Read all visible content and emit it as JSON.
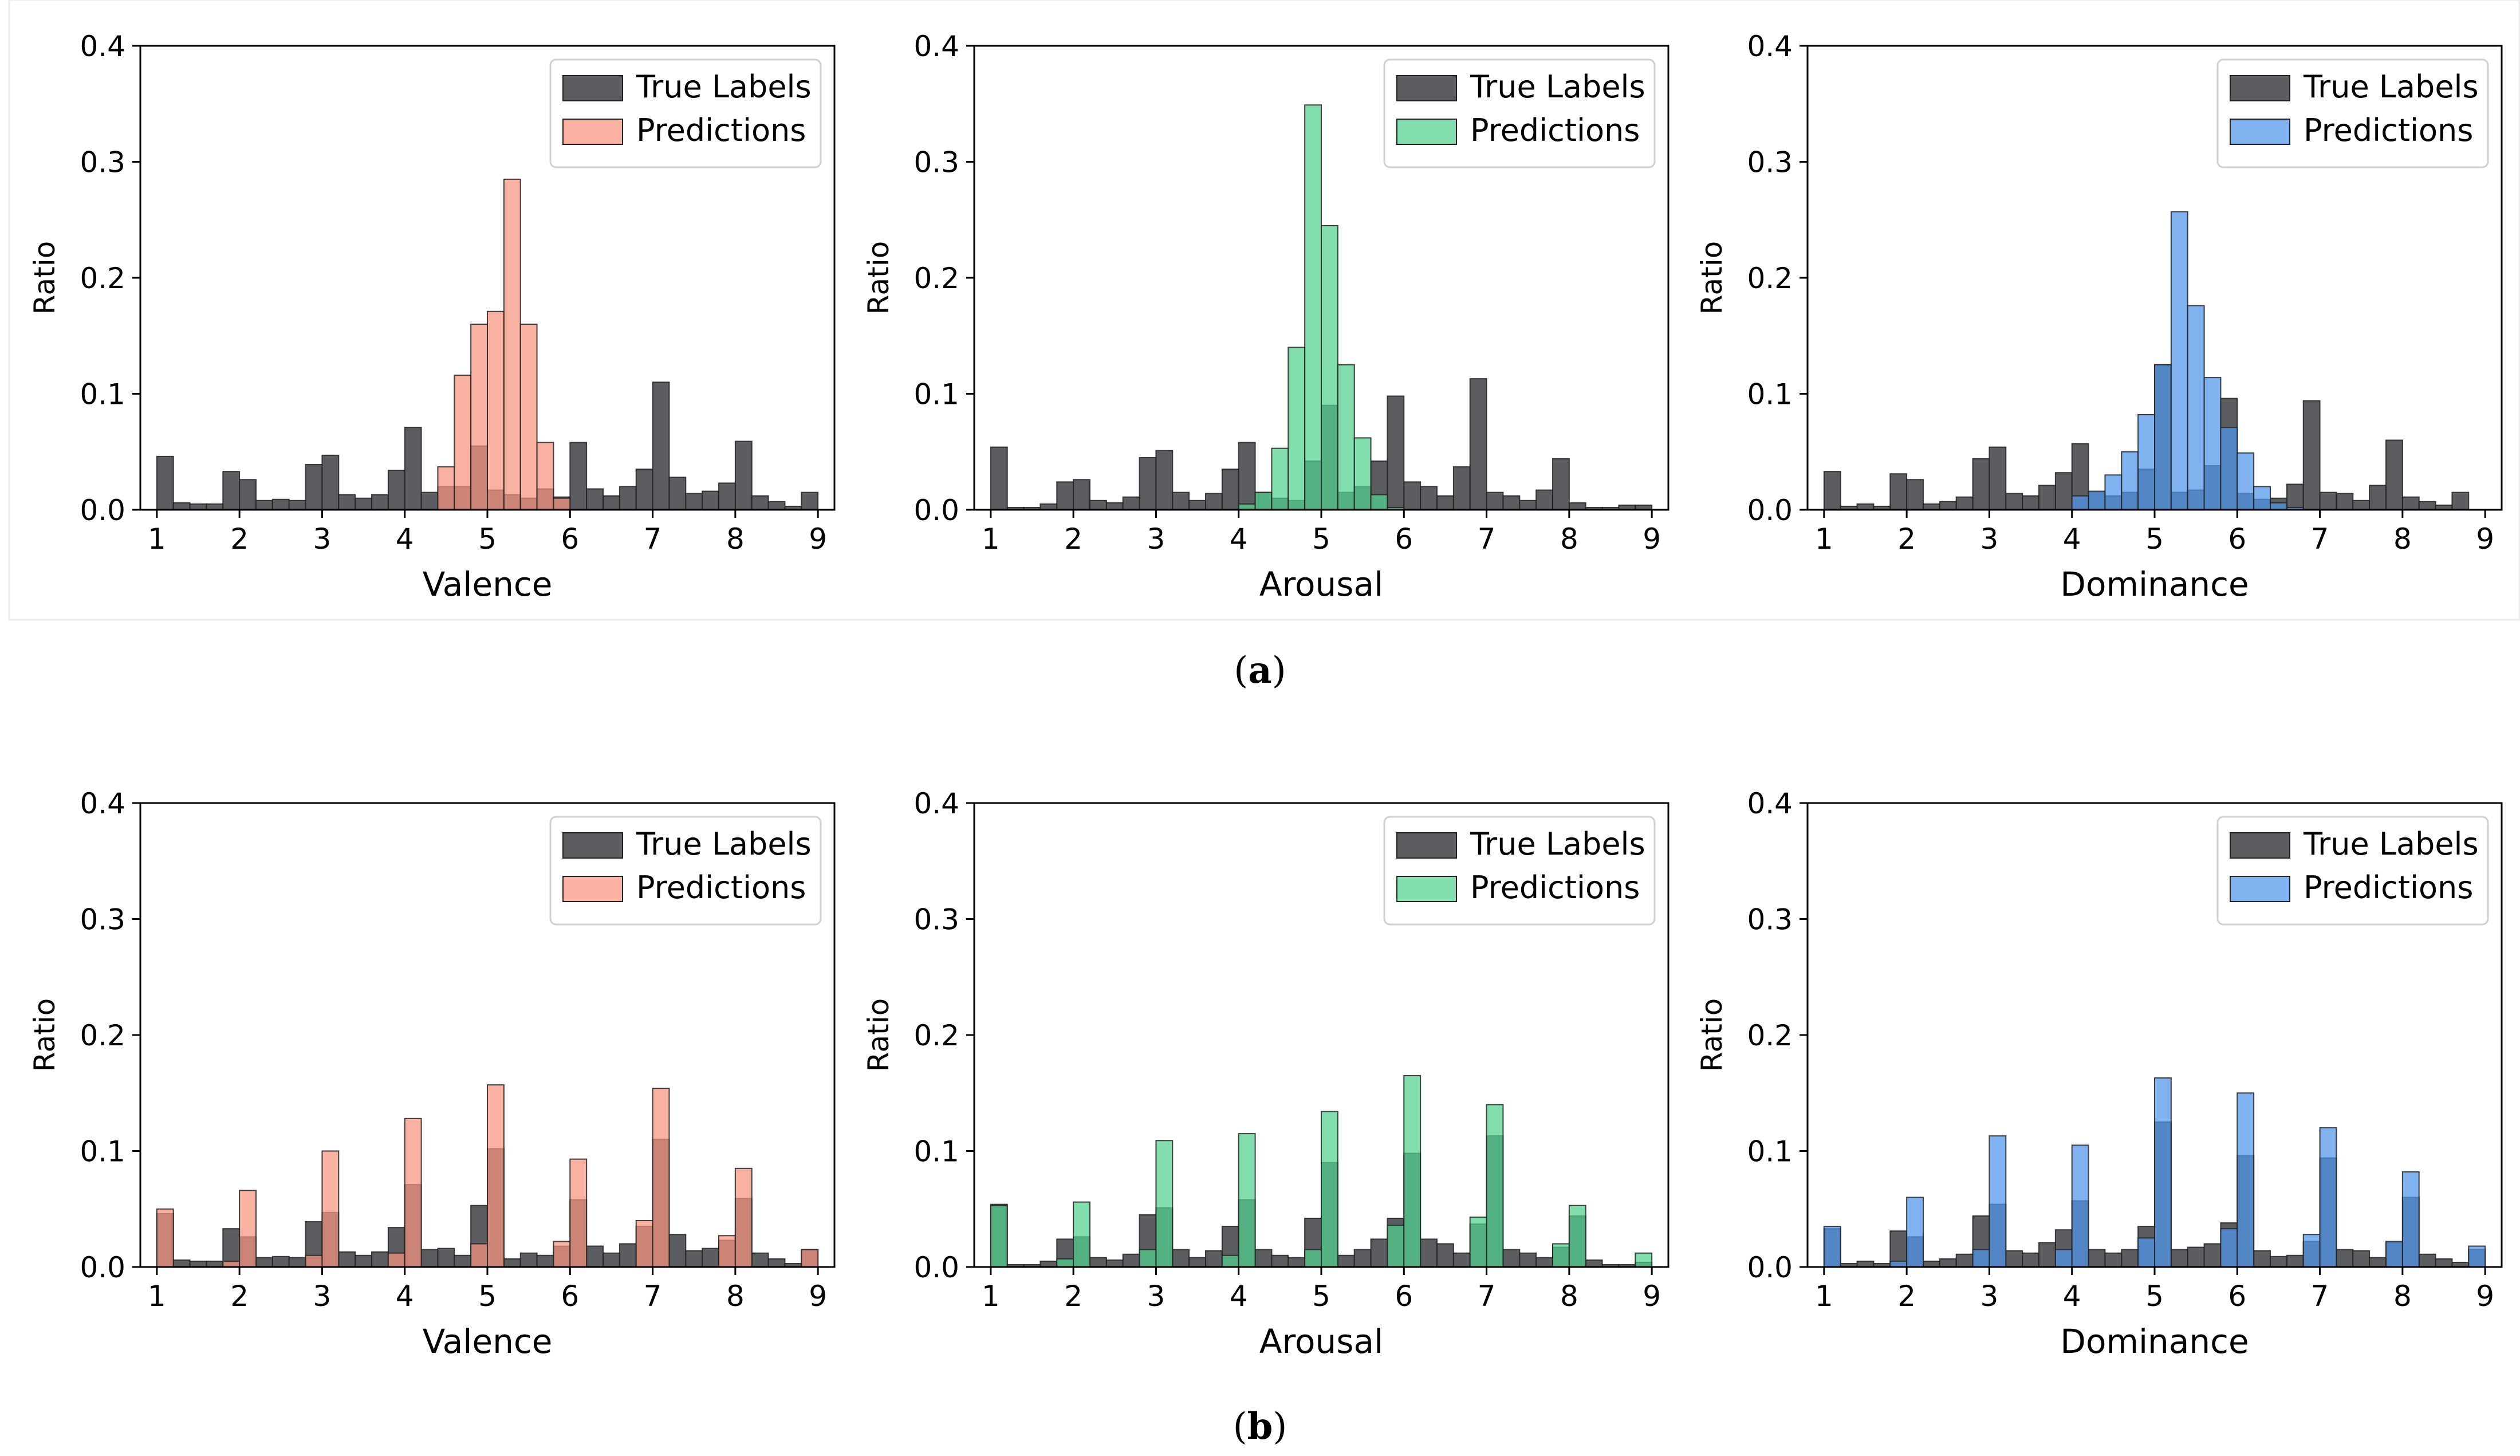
{
  "colors": {
    "true_labels": "#4d4f53",
    "valence": "#f6937d",
    "arousal": "#52d18d",
    "dominance": "#4f96ea",
    "edge": "#222222"
  },
  "captions": {
    "a": "a",
    "b": "b"
  },
  "chart_data": [
    {
      "id": "a-valence",
      "row": "a",
      "type": "bar",
      "title": "",
      "xlabel": "Valence",
      "ylabel": "Ratio",
      "xlim": [
        0.8,
        9.2
      ],
      "ylim": [
        0,
        0.4
      ],
      "xticks": [
        1,
        2,
        3,
        4,
        5,
        6,
        7,
        8,
        9
      ],
      "yticks": [
        "0.0",
        "0.1",
        "0.2",
        "0.3",
        "0.4"
      ],
      "bin_start": 1,
      "bin_width": 0.2,
      "color_key": "valence",
      "legend": "top-right",
      "series": [
        {
          "name": "True Labels",
          "values": [
            0.046,
            0.006,
            0.005,
            0.005,
            0.033,
            0.026,
            0.008,
            0.009,
            0.008,
            0.039,
            0.047,
            0.013,
            0.01,
            0.013,
            0.034,
            0.071,
            0.015,
            0.02,
            0.02,
            0.055,
            0.017,
            0.013,
            0.01,
            0.018,
            0.011,
            0.058,
            0.018,
            0.012,
            0.02,
            0.035,
            0.11,
            0.028,
            0.014,
            0.016,
            0.023,
            0.059,
            0.012,
            0.007,
            0.003,
            0.015
          ]
        },
        {
          "name": "Predictions",
          "values": [
            0,
            0,
            0,
            0,
            0,
            0,
            0,
            0,
            0,
            0,
            0,
            0,
            0,
            0,
            0,
            0,
            0,
            0.037,
            0.116,
            0.16,
            0.171,
            0.285,
            0.16,
            0.058,
            0.01,
            0,
            0,
            0,
            0,
            0,
            0,
            0,
            0,
            0,
            0,
            0,
            0,
            0,
            0,
            0
          ]
        }
      ]
    },
    {
      "id": "a-arousal",
      "row": "a",
      "type": "bar",
      "title": "",
      "xlabel": "Arousal",
      "ylabel": "Ratio",
      "xlim": [
        0.8,
        9.2
      ],
      "ylim": [
        0,
        0.4
      ],
      "xticks": [
        1,
        2,
        3,
        4,
        5,
        6,
        7,
        8,
        9
      ],
      "yticks": [
        "0.0",
        "0.1",
        "0.2",
        "0.3",
        "0.4"
      ],
      "bin_start": 1,
      "bin_width": 0.2,
      "color_key": "arousal",
      "legend": "top-right",
      "series": [
        {
          "name": "True Labels",
          "values": [
            0.054,
            0.002,
            0.002,
            0.005,
            0.024,
            0.026,
            0.008,
            0.006,
            0.011,
            0.045,
            0.051,
            0.015,
            0.008,
            0.014,
            0.035,
            0.058,
            0.015,
            0.01,
            0.008,
            0.042,
            0.09,
            0.015,
            0.02,
            0.042,
            0.098,
            0.024,
            0.02,
            0.012,
            0.037,
            0.113,
            0.015,
            0.012,
            0.008,
            0.017,
            0.044,
            0.006,
            0.002,
            0.002,
            0.004,
            0.004
          ]
        },
        {
          "name": "Predictions",
          "values": [
            0,
            0,
            0,
            0,
            0,
            0,
            0,
            0,
            0,
            0,
            0,
            0,
            0,
            0,
            0,
            0.005,
            0.015,
            0.053,
            0.14,
            0.349,
            0.245,
            0.125,
            0.062,
            0.013,
            0.002,
            0,
            0,
            0,
            0,
            0,
            0,
            0,
            0,
            0,
            0,
            0,
            0,
            0,
            0,
            0
          ]
        }
      ]
    },
    {
      "id": "a-dominance",
      "row": "a",
      "type": "bar",
      "title": "",
      "xlabel": "Dominance",
      "ylabel": "Ratio",
      "xlim": [
        0.8,
        9.2
      ],
      "ylim": [
        0,
        0.4
      ],
      "xticks": [
        1,
        2,
        3,
        4,
        5,
        6,
        7,
        8,
        9
      ],
      "yticks": [
        "0.0",
        "0.1",
        "0.2",
        "0.3",
        "0.4"
      ],
      "bin_start": 1,
      "bin_width": 0.2,
      "color_key": "dominance",
      "legend": "top-right",
      "series": [
        {
          "name": "True Labels",
          "values": [
            0.033,
            0.003,
            0.005,
            0.003,
            0.031,
            0.026,
            0.005,
            0.007,
            0.011,
            0.044,
            0.054,
            0.014,
            0.012,
            0.021,
            0.032,
            0.057,
            0.015,
            0.012,
            0.015,
            0.035,
            0.125,
            0.015,
            0.017,
            0.038,
            0.096,
            0.014,
            0.009,
            0.01,
            0.022,
            0.094,
            0.015,
            0.014,
            0.008,
            0.021,
            0.06,
            0.011,
            0.007,
            0.004,
            0.015,
            0
          ]
        },
        {
          "name": "Predictions",
          "values": [
            0,
            0,
            0,
            0,
            0,
            0,
            0,
            0,
            0,
            0,
            0,
            0,
            0,
            0,
            0,
            0.012,
            0.016,
            0.03,
            0.05,
            0.082,
            0.125,
            0.257,
            0.176,
            0.114,
            0.071,
            0.049,
            0.02,
            0.006,
            0.002,
            0,
            0,
            0,
            0,
            0,
            0,
            0,
            0,
            0,
            0,
            0
          ]
        }
      ]
    },
    {
      "id": "b-valence",
      "row": "b",
      "type": "bar",
      "title": "",
      "xlabel": "Valence",
      "ylabel": "Ratio",
      "xlim": [
        0.8,
        9.2
      ],
      "ylim": [
        0,
        0.4
      ],
      "xticks": [
        1,
        2,
        3,
        4,
        5,
        6,
        7,
        8,
        9
      ],
      "yticks": [
        "0.0",
        "0.1",
        "0.2",
        "0.3",
        "0.4"
      ],
      "bin_start": 1,
      "bin_width": 0.2,
      "color_key": "valence",
      "legend": "top-right",
      "series": [
        {
          "name": "True Labels",
          "values": [
            0.046,
            0.006,
            0.005,
            0.005,
            0.033,
            0.026,
            0.008,
            0.009,
            0.008,
            0.039,
            0.047,
            0.013,
            0.01,
            0.013,
            0.034,
            0.071,
            0.015,
            0.016,
            0.01,
            0.053,
            0.102,
            0.007,
            0.012,
            0.01,
            0.018,
            0.058,
            0.018,
            0.012,
            0.02,
            0.035,
            0.11,
            0.028,
            0.014,
            0.016,
            0.023,
            0.059,
            0.012,
            0.007,
            0.003,
            0.015
          ]
        },
        {
          "name": "Predictions",
          "values": [
            0.05,
            0,
            0,
            0,
            0.005,
            0.066,
            0,
            0,
            0,
            0.01,
            0.1,
            0,
            0,
            0,
            0.012,
            0.128,
            0,
            0,
            0,
            0.02,
            0.157,
            0,
            0,
            0,
            0.022,
            0.093,
            0,
            0,
            0,
            0.04,
            0.154,
            0,
            0,
            0,
            0.027,
            0.085,
            0,
            0,
            0,
            0.015
          ]
        }
      ]
    },
    {
      "id": "b-arousal",
      "row": "b",
      "type": "bar",
      "title": "",
      "xlabel": "Arousal",
      "ylabel": "Ratio",
      "xlim": [
        0.8,
        9.2
      ],
      "ylim": [
        0,
        0.4
      ],
      "xticks": [
        1,
        2,
        3,
        4,
        5,
        6,
        7,
        8,
        9
      ],
      "yticks": [
        "0.0",
        "0.1",
        "0.2",
        "0.3",
        "0.4"
      ],
      "bin_start": 1,
      "bin_width": 0.2,
      "color_key": "arousal",
      "legend": "top-right",
      "series": [
        {
          "name": "True Labels",
          "values": [
            0.054,
            0.002,
            0.002,
            0.005,
            0.024,
            0.026,
            0.008,
            0.006,
            0.011,
            0.045,
            0.051,
            0.015,
            0.008,
            0.014,
            0.035,
            0.058,
            0.015,
            0.01,
            0.008,
            0.042,
            0.09,
            0.01,
            0.015,
            0.024,
            0.042,
            0.098,
            0.024,
            0.02,
            0.012,
            0.037,
            0.113,
            0.015,
            0.012,
            0.008,
            0.017,
            0.044,
            0.006,
            0.002,
            0.002,
            0.004
          ]
        },
        {
          "name": "Predictions",
          "values": [
            0.053,
            0,
            0,
            0,
            0.007,
            0.056,
            0,
            0,
            0,
            0.015,
            0.109,
            0,
            0,
            0,
            0.01,
            0.115,
            0,
            0,
            0,
            0.015,
            0.134,
            0,
            0,
            0,
            0.036,
            0.165,
            0,
            0,
            0,
            0.043,
            0.14,
            0,
            0,
            0,
            0.02,
            0.053,
            0,
            0,
            0,
            0.012
          ]
        }
      ]
    },
    {
      "id": "b-dominance",
      "row": "b",
      "type": "bar",
      "title": "",
      "xlabel": "Dominance",
      "ylabel": "Ratio",
      "xlim": [
        0.8,
        9.2
      ],
      "ylim": [
        0,
        0.4
      ],
      "xticks": [
        1,
        2,
        3,
        4,
        5,
        6,
        7,
        8,
        9
      ],
      "yticks": [
        "0.0",
        "0.1",
        "0.2",
        "0.3",
        "0.4"
      ],
      "bin_start": 1,
      "bin_width": 0.2,
      "color_key": "dominance",
      "legend": "top-right",
      "series": [
        {
          "name": "True Labels",
          "values": [
            0.033,
            0.003,
            0.005,
            0.003,
            0.031,
            0.026,
            0.005,
            0.007,
            0.011,
            0.044,
            0.054,
            0.014,
            0.012,
            0.021,
            0.032,
            0.057,
            0.015,
            0.012,
            0.015,
            0.035,
            0.125,
            0.015,
            0.017,
            0.02,
            0.038,
            0.096,
            0.014,
            0.009,
            0.01,
            0.022,
            0.094,
            0.015,
            0.014,
            0.008,
            0.021,
            0.06,
            0.011,
            0.007,
            0.004,
            0.015
          ]
        },
        {
          "name": "Predictions",
          "values": [
            0.035,
            0,
            0,
            0,
            0.005,
            0.06,
            0,
            0,
            0,
            0.015,
            0.113,
            0,
            0,
            0,
            0.015,
            0.105,
            0,
            0,
            0,
            0.025,
            0.163,
            0,
            0,
            0,
            0.033,
            0.15,
            0,
            0,
            0,
            0.028,
            0.12,
            0,
            0,
            0,
            0.022,
            0.082,
            0,
            0,
            0,
            0.018
          ]
        }
      ]
    }
  ]
}
